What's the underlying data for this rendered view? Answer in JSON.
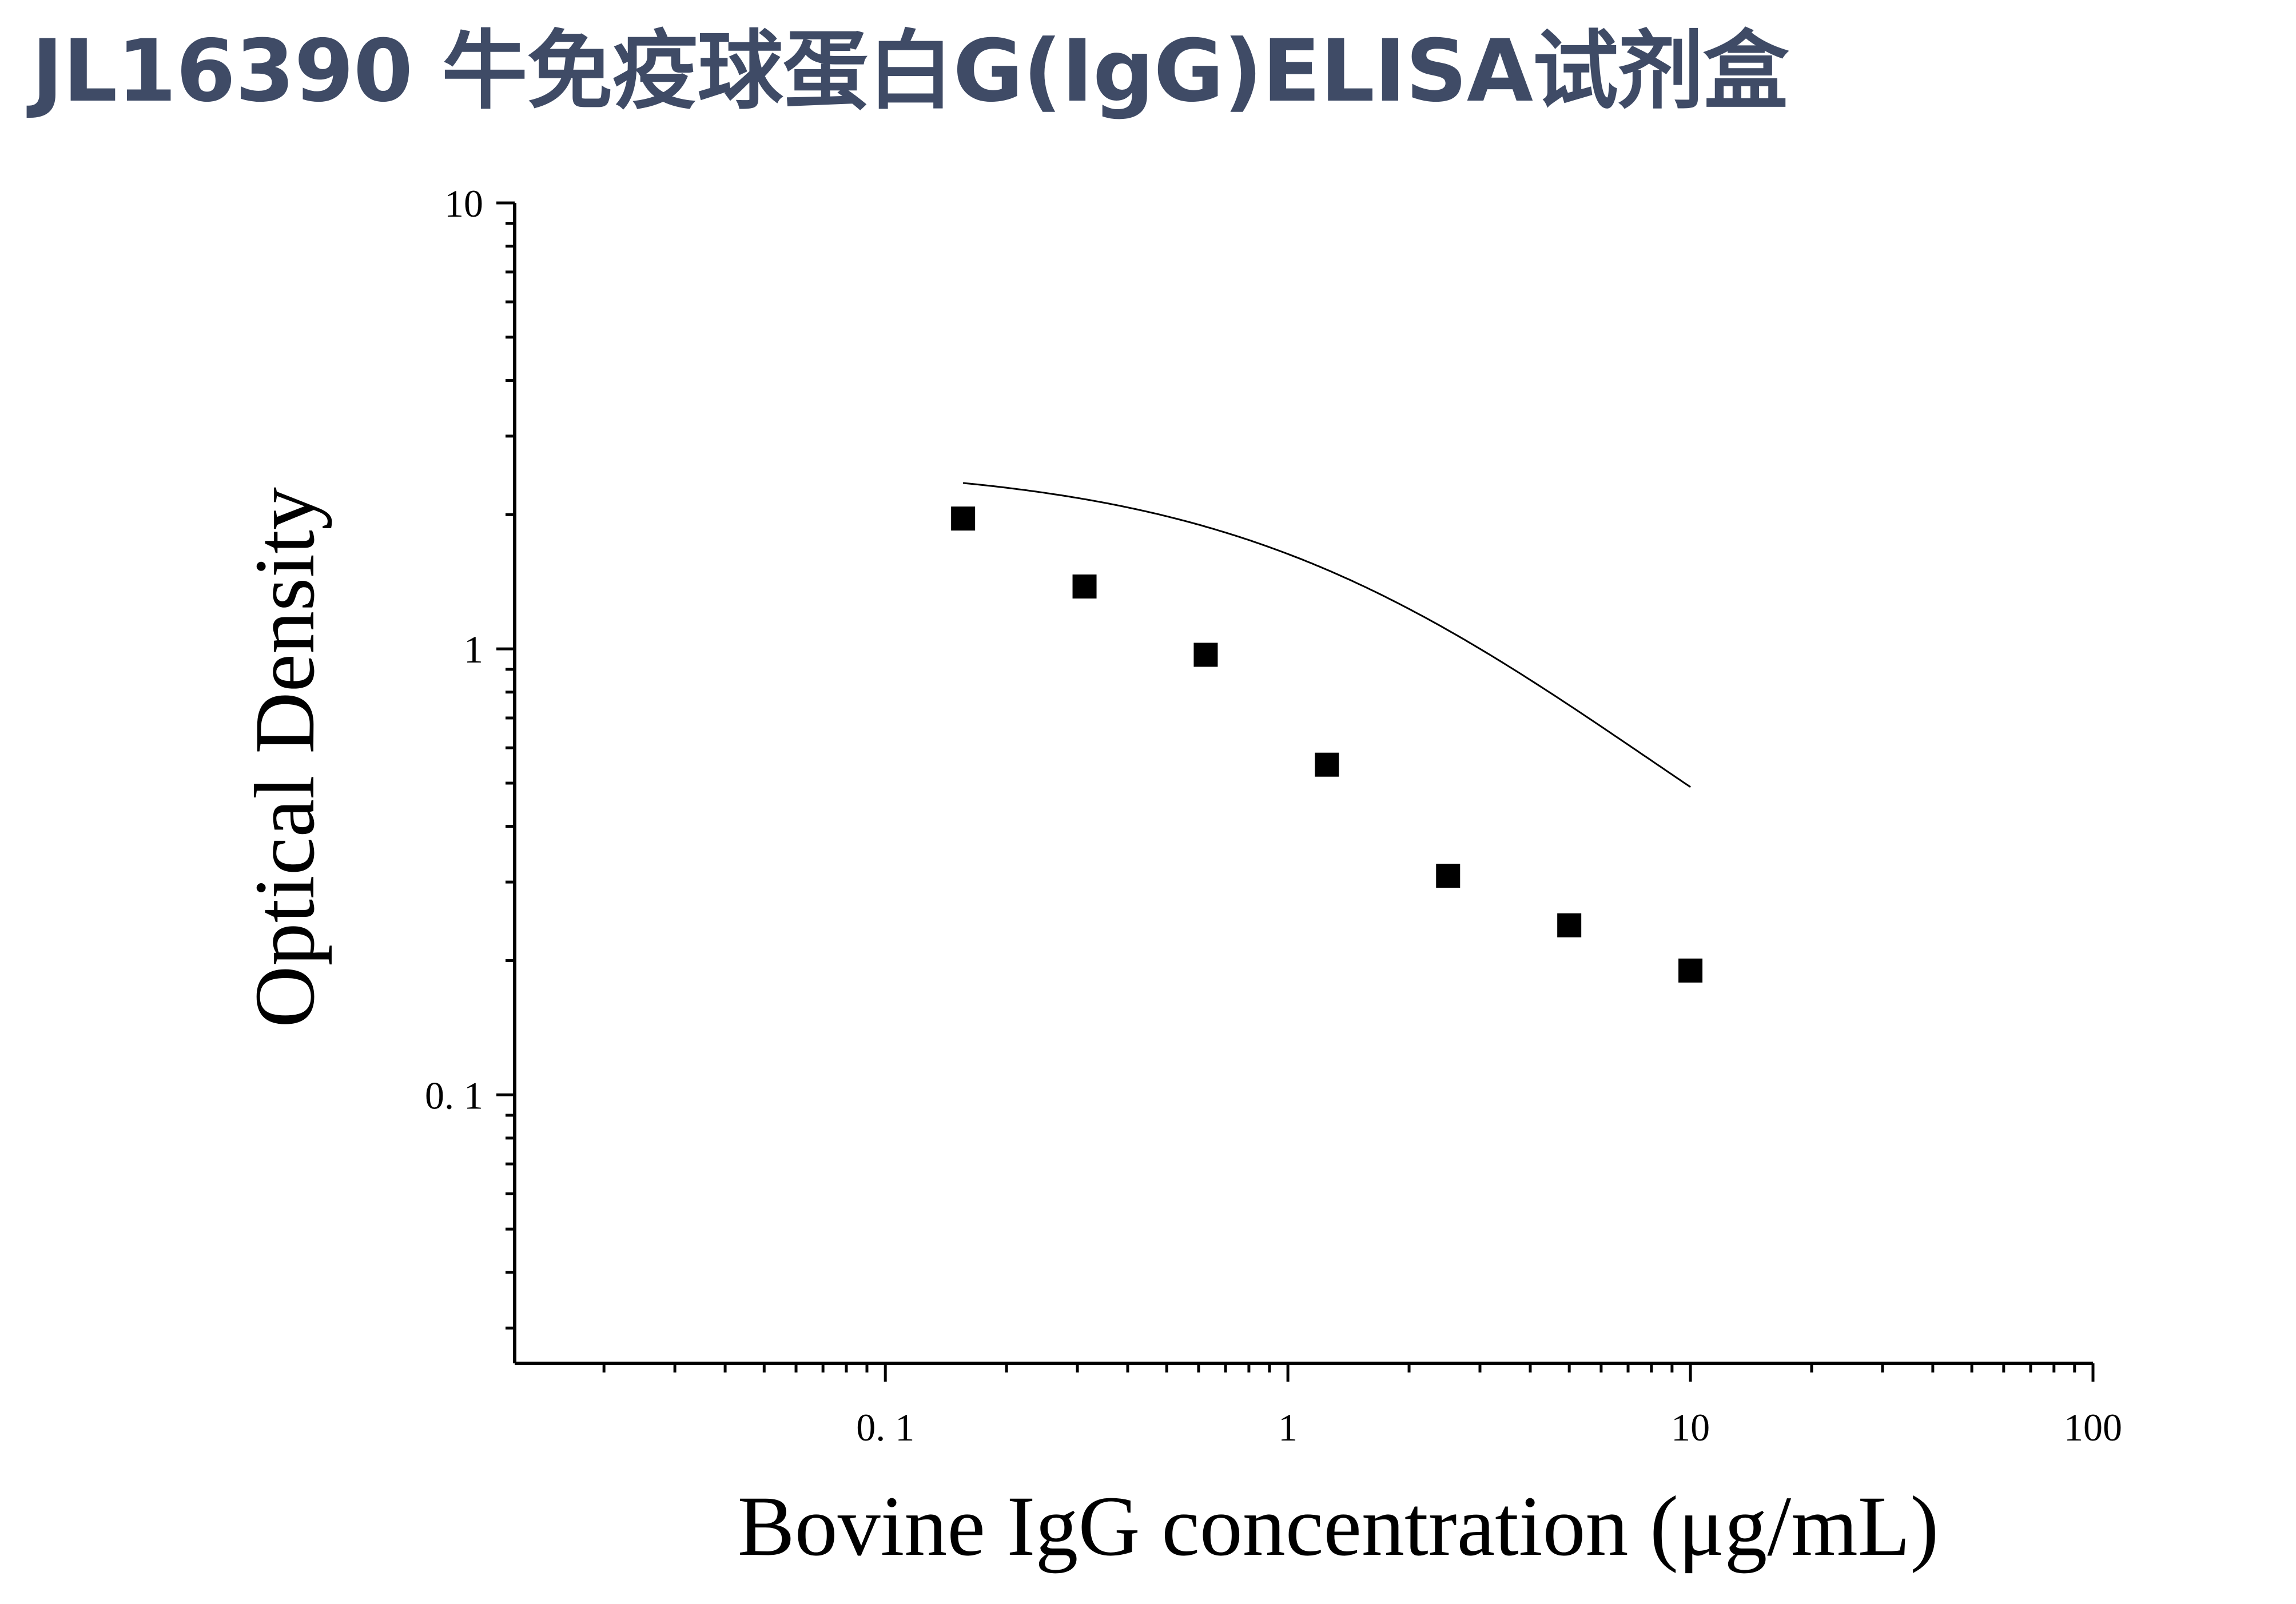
{
  "title": "JL16390 牛免疫球蛋白G(IgG)ELISA试剂盒",
  "chart_data": {
    "type": "scatter",
    "xlabel": "Bovine IgG concentration (μg/mL)",
    "ylabel": "Optical Density",
    "x_scale": "log",
    "y_scale": "log",
    "xlim": [
      0.012,
      100
    ],
    "ylim": [
      0.025,
      10
    ],
    "x_ticks": [
      0.1,
      1,
      10,
      100
    ],
    "x_tick_labels": [
      "0. 1",
      "1",
      "10",
      "100"
    ],
    "y_ticks": [
      0.1,
      1,
      10
    ],
    "y_tick_labels": [
      "0. 1",
      "1",
      "10"
    ],
    "grid": false,
    "legend": "none",
    "series": [
      {
        "marker": "square",
        "color": "#000000",
        "x": [
          0.156,
          0.3125,
          0.625,
          1.25,
          2.5,
          5,
          10
        ],
        "y": [
          1.96,
          1.38,
          0.97,
          0.55,
          0.31,
          0.24,
          0.19
        ]
      }
    ],
    "fit_curve": {
      "model": "4PL",
      "color": "#000000",
      "x_range": [
        0.156,
        10
      ],
      "bottom": 0.12,
      "top": 2.6,
      "ec50": 1.6,
      "hill": 0.95
    }
  }
}
